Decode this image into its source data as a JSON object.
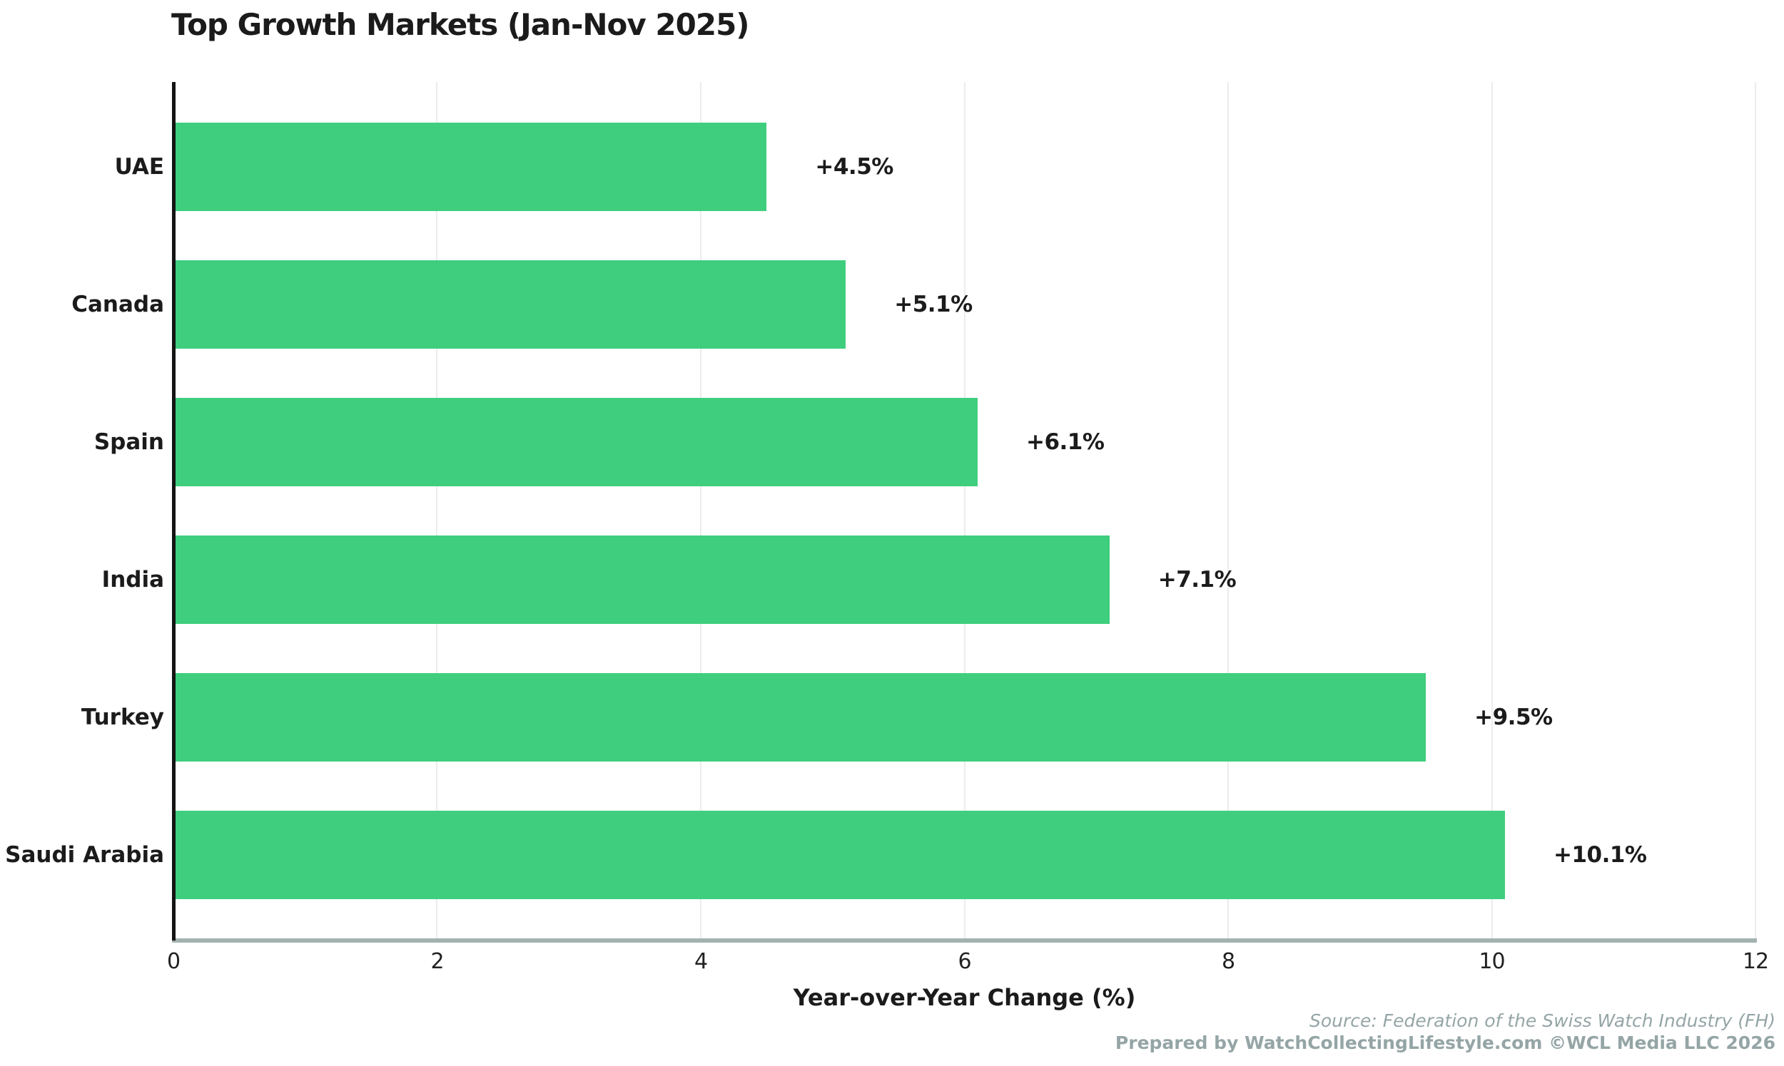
{
  "title": "Top Growth Markets (Jan-Nov 2025)",
  "chart_data": {
    "type": "bar",
    "orientation": "horizontal",
    "title": "Top Growth Markets (Jan-Nov 2025)",
    "categories": [
      "UAE",
      "Canada",
      "Spain",
      "India",
      "Turkey",
      "Saudi Arabia"
    ],
    "values": [
      4.5,
      5.1,
      6.1,
      7.1,
      9.5,
      10.1
    ],
    "bar_labels": [
      "+4.5%",
      "+5.1%",
      "+6.1%",
      "+7.1%",
      "+9.5%",
      "+10.1%"
    ],
    "xlabel": "Year-over-Year Change (%)",
    "ylabel": "",
    "xlim": [
      0,
      12
    ],
    "xticks": [
      0,
      2,
      4,
      6,
      8,
      10,
      12
    ],
    "grid": "vertical-light-behind-bars",
    "legend": "none",
    "bar_color": "#3ece7e",
    "grid_color": "#ececec",
    "left_spine_color": "#141414",
    "bottom_spine_color": "#a3b2b0",
    "text_color": "#1b1b1b"
  },
  "footer": {
    "source": "Source: Federation of the Swiss Watch Industry (FH)",
    "credit": "Prepared by WatchCollectingLifestyle.com ©WCL Media LLC 2026"
  }
}
